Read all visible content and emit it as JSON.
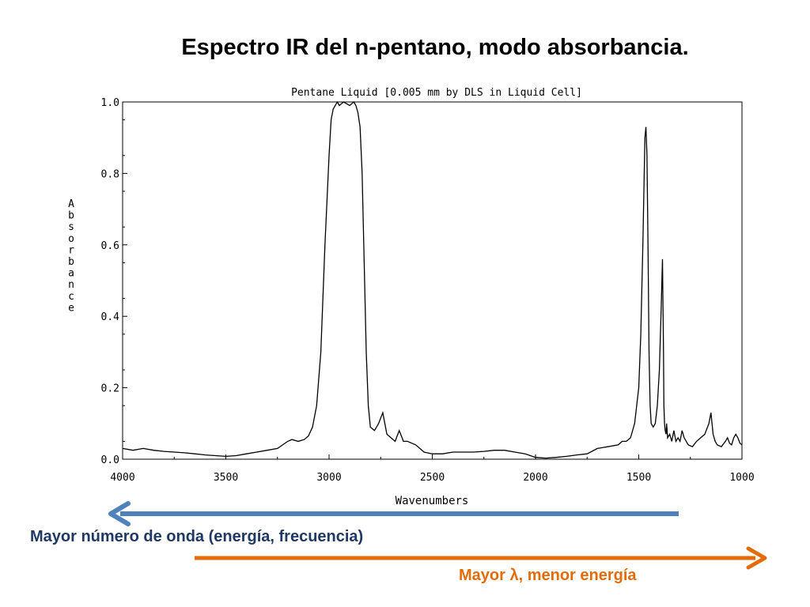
{
  "slide": {
    "title": "Espectro IR del n-pentano, modo absorbancia.",
    "caption_left": "Mayor número de onda (energía, frecuencia)",
    "caption_right": "Mayor  λ, menor energía"
  },
  "colors": {
    "arrow_blue": "#4f81bd",
    "arrow_orange": "#e36c09",
    "caption_blue": "#1f3864",
    "caption_orange": "#e36c09"
  },
  "chart_data": {
    "type": "line",
    "title": "Pentane Liquid [0.005 mm by DLS in Liquid Cell]",
    "xlabel": "Wavenumbers",
    "ylabel": "Absorbance",
    "xlim": [
      4000,
      1000
    ],
    "ylim": [
      0.0,
      1.0
    ],
    "x_reversed": true,
    "grid": false,
    "legend": "none",
    "xticks": [
      4000,
      3500,
      3000,
      2500,
      2000,
      1500,
      1000
    ],
    "yticks": [
      "0.0",
      "0.2",
      "0.4",
      "0.6",
      "0.8",
      "1.0"
    ],
    "series": [
      {
        "color": "#000000",
        "x": [
          4000,
          3950,
          3900,
          3850,
          3800,
          3750,
          3700,
          3650,
          3600,
          3550,
          3500,
          3450,
          3400,
          3350,
          3300,
          3250,
          3200,
          3180,
          3150,
          3120,
          3100,
          3080,
          3060,
          3040,
          3020,
          3000,
          2990,
          2980,
          2970,
          2960,
          2950,
          2930,
          2900,
          2880,
          2870,
          2860,
          2850,
          2840,
          2830,
          2820,
          2810,
          2800,
          2780,
          2760,
          2740,
          2730,
          2720,
          2700,
          2680,
          2660,
          2650,
          2640,
          2620,
          2600,
          2580,
          2560,
          2540,
          2500,
          2450,
          2400,
          2350,
          2300,
          2250,
          2200,
          2150,
          2100,
          2050,
          2000,
          1950,
          1900,
          1850,
          1800,
          1750,
          1700,
          1650,
          1600,
          1580,
          1560,
          1540,
          1520,
          1500,
          1490,
          1480,
          1470,
          1465,
          1460,
          1455,
          1450,
          1445,
          1440,
          1430,
          1420,
          1410,
          1400,
          1395,
          1390,
          1385,
          1380,
          1378,
          1375,
          1372,
          1368,
          1365,
          1360,
          1350,
          1340,
          1330,
          1320,
          1310,
          1300,
          1290,
          1280,
          1260,
          1240,
          1220,
          1200,
          1180,
          1160,
          1150,
          1140,
          1130,
          1120,
          1100,
          1080,
          1070,
          1060,
          1050,
          1040,
          1030,
          1020,
          1010,
          1000
        ],
        "values": [
          0.03,
          0.025,
          0.03,
          0.025,
          0.022,
          0.02,
          0.018,
          0.015,
          0.012,
          0.01,
          0.008,
          0.01,
          0.015,
          0.02,
          0.025,
          0.03,
          0.05,
          0.055,
          0.05,
          0.055,
          0.065,
          0.09,
          0.15,
          0.3,
          0.6,
          0.85,
          0.95,
          0.98,
          0.99,
          1.0,
          0.99,
          1.0,
          0.99,
          1.0,
          0.99,
          0.97,
          0.93,
          0.8,
          0.55,
          0.3,
          0.15,
          0.09,
          0.08,
          0.1,
          0.13,
          0.1,
          0.07,
          0.06,
          0.05,
          0.08,
          0.065,
          0.05,
          0.05,
          0.045,
          0.04,
          0.03,
          0.02,
          0.015,
          0.015,
          0.02,
          0.02,
          0.02,
          0.022,
          0.025,
          0.025,
          0.02,
          0.015,
          0.005,
          0.003,
          0.005,
          0.008,
          0.012,
          0.015,
          0.03,
          0.035,
          0.04,
          0.05,
          0.05,
          0.06,
          0.1,
          0.2,
          0.35,
          0.6,
          0.9,
          0.93,
          0.85,
          0.6,
          0.3,
          0.15,
          0.1,
          0.09,
          0.1,
          0.15,
          0.25,
          0.35,
          0.45,
          0.56,
          0.3,
          0.15,
          0.1,
          0.08,
          0.07,
          0.1,
          0.06,
          0.07,
          0.05,
          0.08,
          0.05,
          0.06,
          0.05,
          0.08,
          0.06,
          0.04,
          0.035,
          0.05,
          0.06,
          0.07,
          0.1,
          0.13,
          0.07,
          0.05,
          0.04,
          0.035,
          0.05,
          0.06,
          0.045,
          0.04,
          0.06,
          0.07,
          0.06,
          0.045,
          0.04
        ]
      }
    ]
  }
}
